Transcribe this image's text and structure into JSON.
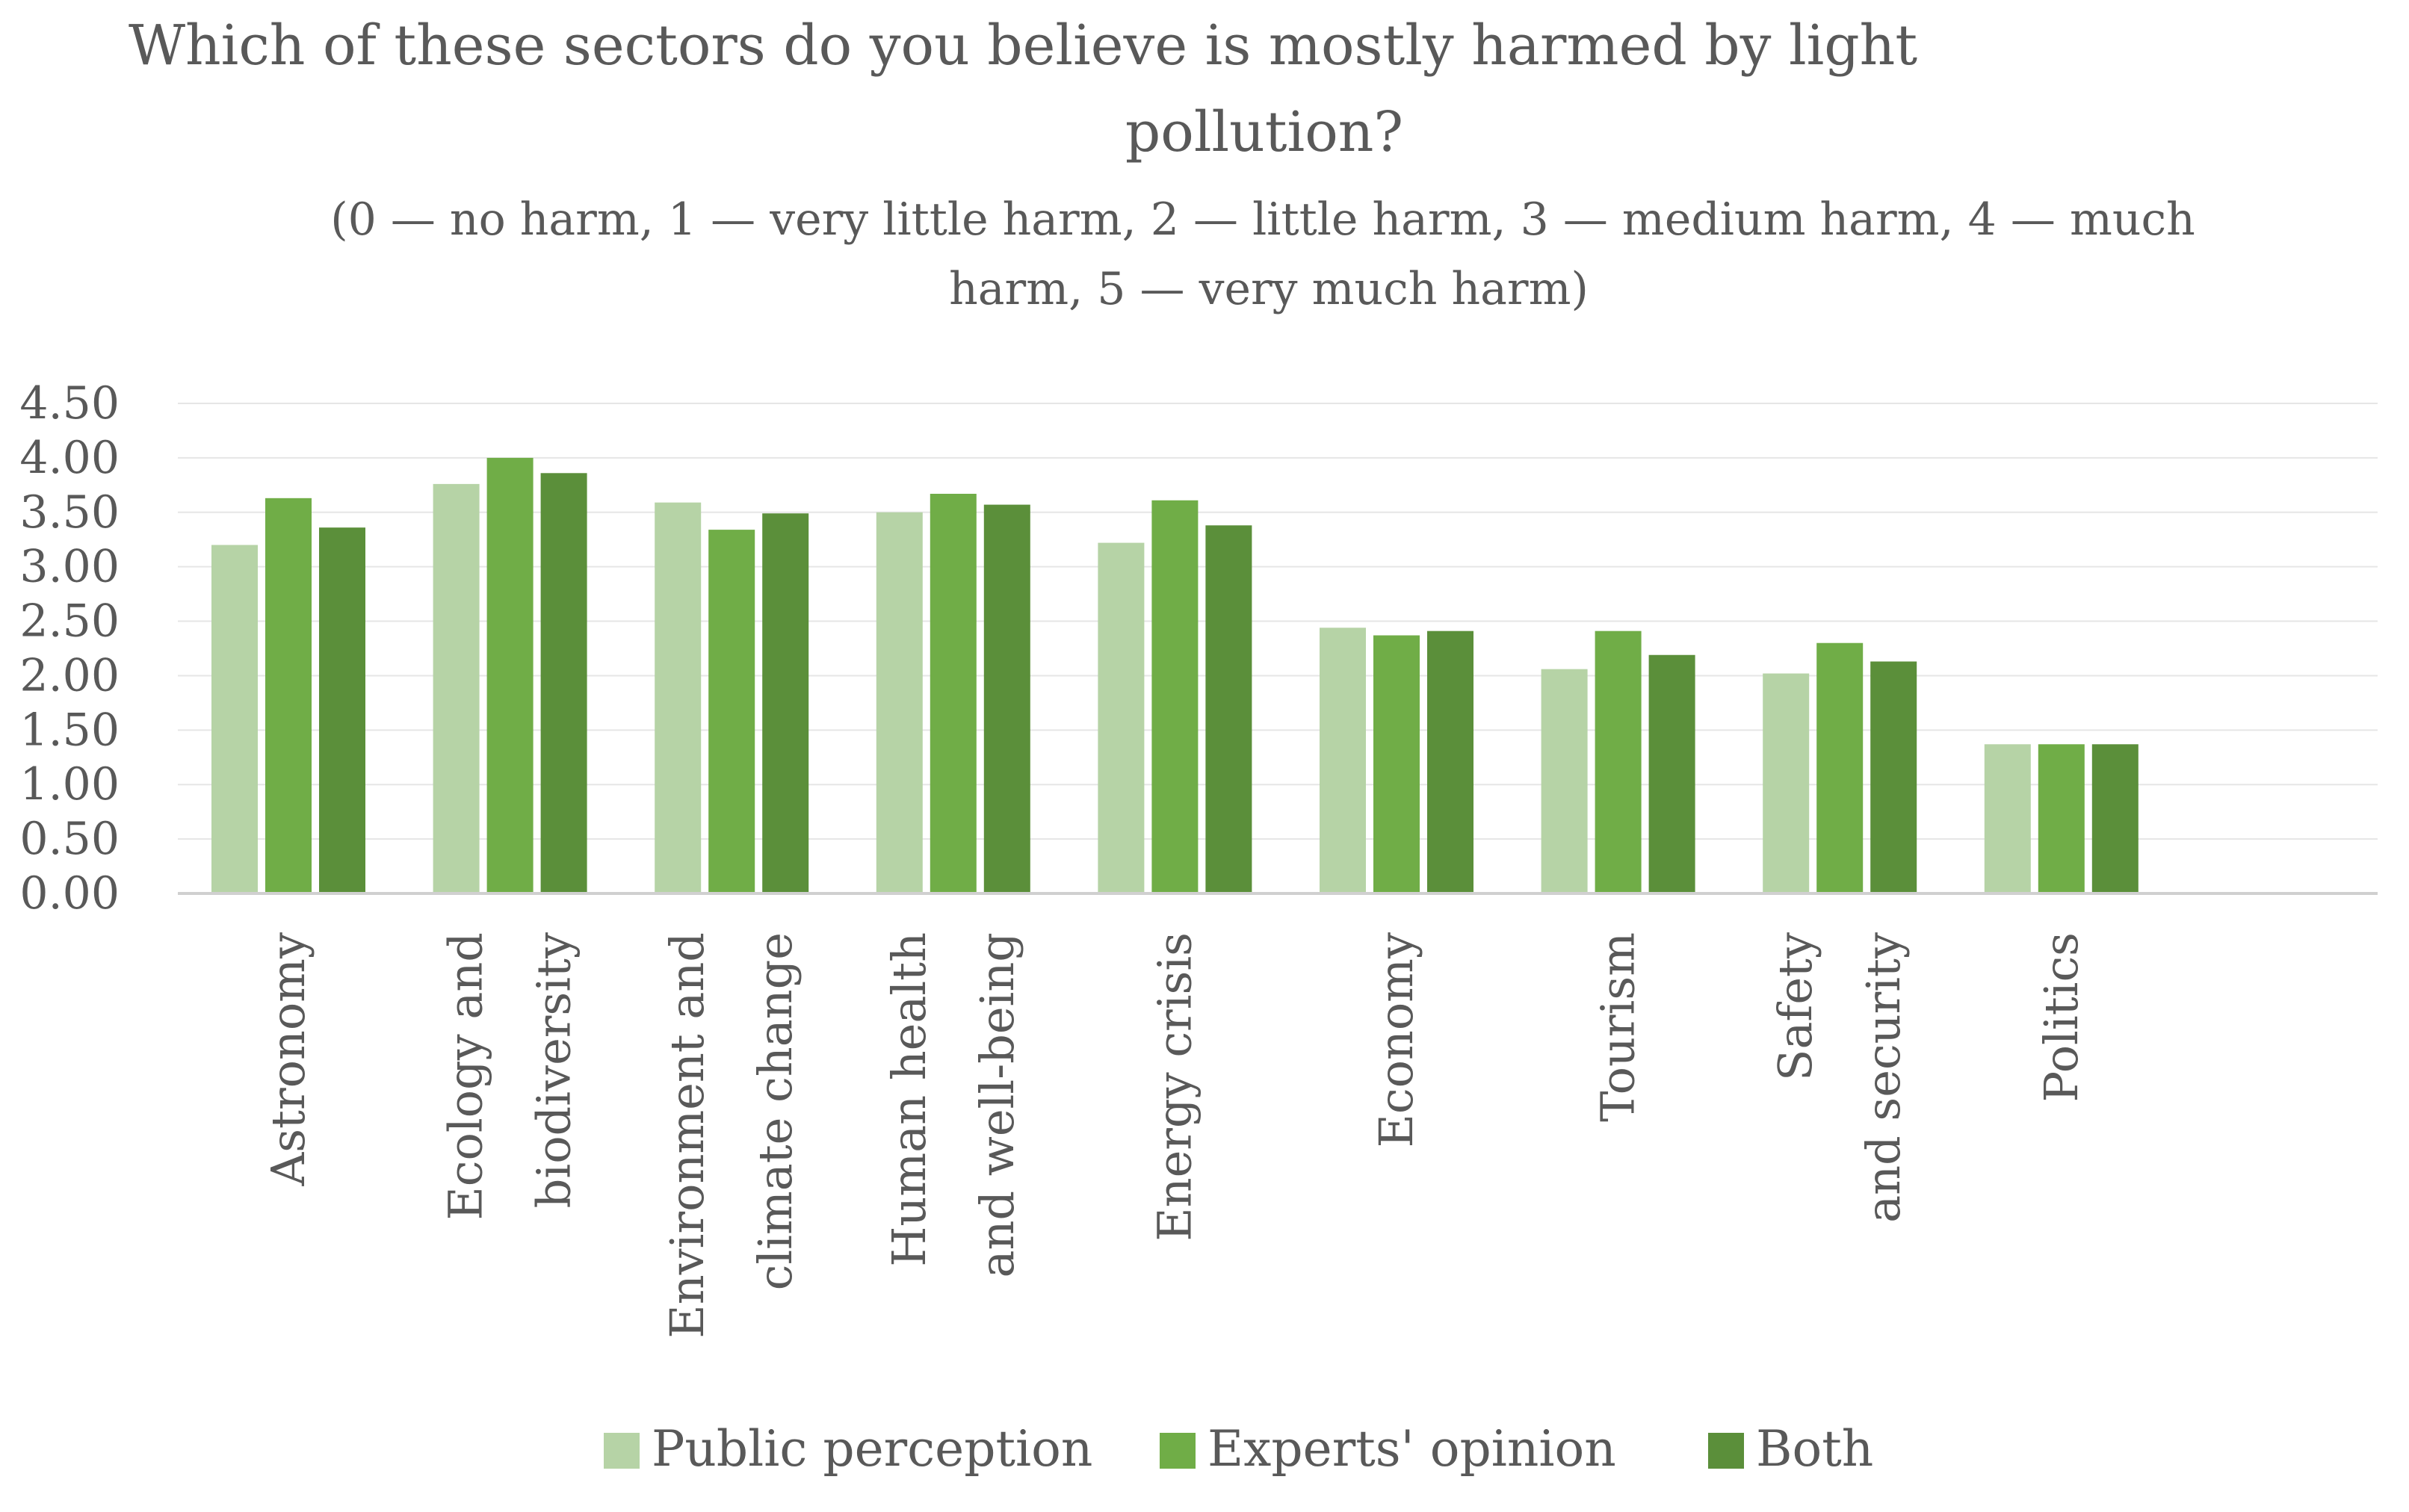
{
  "chart_data": {
    "type": "bar",
    "title_lines": [
      "Which of these sectors do you believe is mostly harmed by light",
      "pollution?"
    ],
    "subtitle_lines": [
      "(0 — no harm, 1 — very little harm, 2 — little harm, 3 — medium harm, 4 — much",
      "harm, 5 — very much harm)"
    ],
    "xlabel": "",
    "ylabel": "",
    "ylim": [
      0,
      4.5
    ],
    "y_ticks": [
      "0.00",
      "0.50",
      "1.00",
      "1.50",
      "2.00",
      "2.50",
      "3.00",
      "3.50",
      "4.00",
      "4.50"
    ],
    "grid": true,
    "legend_position": "bottom",
    "categories": [
      [
        "Astronomy"
      ],
      [
        "Ecology and",
        "biodiversity"
      ],
      [
        "Environment and",
        "climate change"
      ],
      [
        "Human health",
        "and well-being"
      ],
      [
        "Energy crisis"
      ],
      [
        "Economy"
      ],
      [
        "Tourism"
      ],
      [
        "Safety",
        "and security"
      ],
      [
        "Politics"
      ]
    ],
    "series": [
      {
        "name": "Public perception",
        "color": "#b6d3a6",
        "values": [
          3.2,
          3.76,
          3.59,
          3.5,
          3.22,
          2.44,
          2.06,
          2.02,
          1.37
        ]
      },
      {
        "name": "Experts' opinion",
        "color": "#70ad47",
        "values": [
          3.63,
          4.0,
          3.34,
          3.67,
          3.61,
          2.37,
          2.41,
          2.3,
          1.37
        ]
      },
      {
        "name": "Both",
        "color": "#5b8f3a",
        "values": [
          3.36,
          3.86,
          3.49,
          3.57,
          3.38,
          2.41,
          2.19,
          2.13,
          1.37
        ]
      }
    ],
    "colors": {
      "text": "#595959",
      "grid": "#e6e6e6",
      "axis": "#d0d0d0"
    }
  }
}
